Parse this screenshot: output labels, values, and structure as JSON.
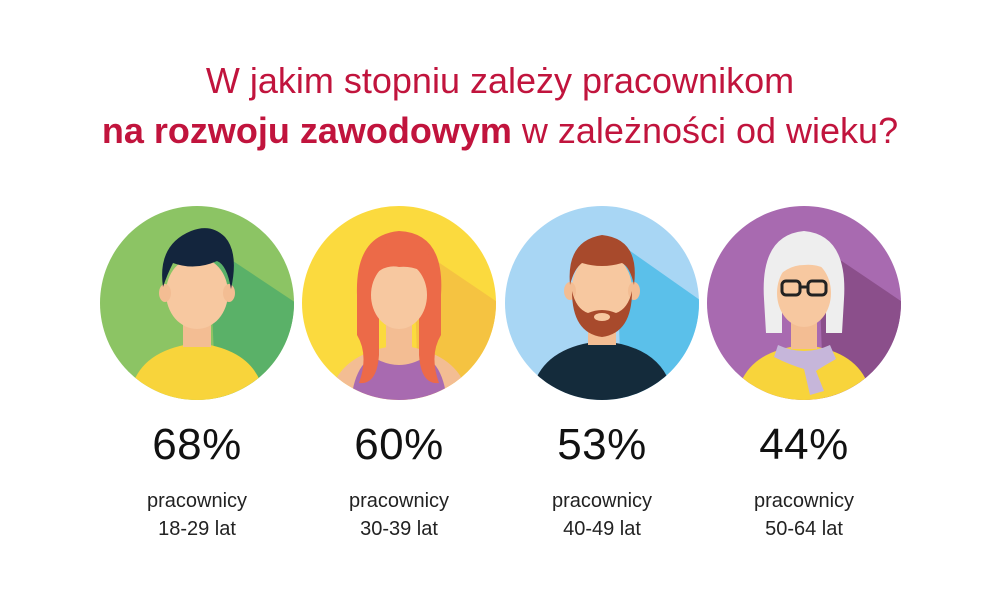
{
  "title": {
    "line1": "W jakim stopniu zależy pracownikom",
    "line2_bold": "na rozwoju zawodowym",
    "line2_rest": " w zależności od wieku?"
  },
  "groups": [
    {
      "percent": "68%",
      "label": "pracownicy",
      "age": "18-29 lat",
      "value": 68,
      "icon": "young-man-avatar-icon"
    },
    {
      "percent": "60%",
      "label": "pracownicy",
      "age": "30-39 lat",
      "value": 60,
      "icon": "woman-red-hair-avatar-icon"
    },
    {
      "percent": "53%",
      "label": "pracownicy",
      "age": "40-49 lat",
      "value": 53,
      "icon": "bearded-man-avatar-icon"
    },
    {
      "percent": "44%",
      "label": "pracownicy",
      "age": "50-64 lat",
      "value": 44,
      "icon": "older-woman-glasses-avatar-icon"
    }
  ],
  "colors": {
    "title": "#c1143d",
    "text": "#111111"
  }
}
